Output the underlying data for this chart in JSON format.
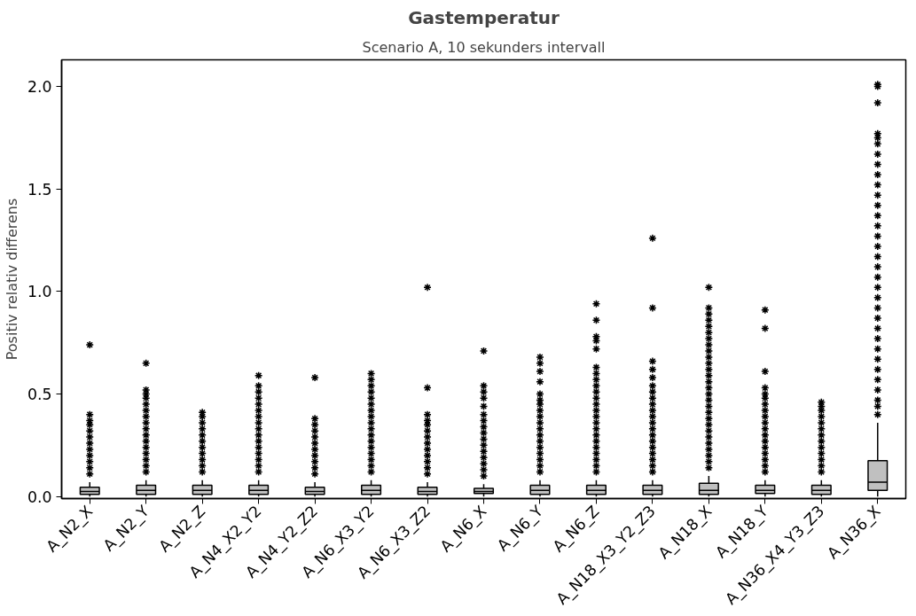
{
  "chart_data": {
    "type": "box",
    "title": "Gastemperatur",
    "subtitle": "Scenario A, 10 sekunders intervall",
    "ylabel": "Positiv relativ differens",
    "categories": [
      "A_N2_X",
      "A_N2_Y",
      "A_N2_Z",
      "A_N4_X2_Y2",
      "A_N4_Y2_Z2",
      "A_N6_X3_Y2",
      "A_N6_X3_Z2",
      "A_N6_X",
      "A_N6_Y",
      "A_N6_Z",
      "A_N18_X3_Y2_Z3",
      "A_N18_X",
      "A_N18_Y",
      "A_N36_X4_Y3_Z3",
      "A_N36_X"
    ],
    "color": "#c0c0c0",
    "marker": "star",
    "grid": false,
    "ylim": [
      -0.01,
      2.13
    ],
    "yticks": [
      {
        "value": 0,
        "label": "0.0"
      },
      {
        "value": 0.5,
        "label": "0.5"
      },
      {
        "value": 1,
        "label": "1.0"
      },
      {
        "value": 1.5,
        "label": "1.5"
      },
      {
        "value": 2,
        "label": "2.0"
      }
    ],
    "boxes": [
      {
        "low": 0,
        "q1": 0.01,
        "median": 0.025,
        "q3": 0.045,
        "high": 0.07,
        "outliers": [
          0.11,
          0.14,
          0.17,
          0.2,
          0.23,
          0.26,
          0.29,
          0.32,
          0.35,
          0.37,
          0.4,
          0.74
        ]
      },
      {
        "low": 0,
        "q1": 0.01,
        "median": 0.03,
        "q3": 0.055,
        "high": 0.08,
        "outliers": [
          0.12,
          0.15,
          0.18,
          0.21,
          0.24,
          0.27,
          0.3,
          0.33,
          0.36,
          0.39,
          0.42,
          0.45,
          0.48,
          0.5,
          0.52,
          0.65
        ]
      },
      {
        "low": 0,
        "q1": 0.01,
        "median": 0.03,
        "q3": 0.055,
        "high": 0.08,
        "outliers": [
          0.12,
          0.15,
          0.18,
          0.21,
          0.24,
          0.27,
          0.3,
          0.33,
          0.36,
          0.39,
          0.41
        ]
      },
      {
        "low": 0,
        "q1": 0.01,
        "median": 0.03,
        "q3": 0.055,
        "high": 0.08,
        "outliers": [
          0.12,
          0.15,
          0.18,
          0.21,
          0.24,
          0.27,
          0.3,
          0.33,
          0.36,
          0.39,
          0.42,
          0.45,
          0.48,
          0.51,
          0.54,
          0.59
        ]
      },
      {
        "low": 0,
        "q1": 0.01,
        "median": 0.025,
        "q3": 0.045,
        "high": 0.07,
        "outliers": [
          0.11,
          0.14,
          0.17,
          0.2,
          0.23,
          0.26,
          0.29,
          0.32,
          0.35,
          0.38,
          0.58
        ]
      },
      {
        "low": 0,
        "q1": 0.01,
        "median": 0.03,
        "q3": 0.055,
        "high": 0.08,
        "outliers": [
          0.12,
          0.15,
          0.18,
          0.21,
          0.24,
          0.27,
          0.3,
          0.33,
          0.36,
          0.39,
          0.42,
          0.45,
          0.48,
          0.51,
          0.54,
          0.57,
          0.6
        ]
      },
      {
        "low": 0,
        "q1": 0.01,
        "median": 0.025,
        "q3": 0.045,
        "high": 0.07,
        "outliers": [
          0.11,
          0.14,
          0.17,
          0.2,
          0.23,
          0.26,
          0.29,
          0.32,
          0.35,
          0.37,
          0.4,
          0.53,
          1.02
        ]
      },
      {
        "low": 0,
        "q1": 0.015,
        "median": 0.025,
        "q3": 0.04,
        "high": 0.06,
        "outliers": [
          0.1,
          0.13,
          0.16,
          0.19,
          0.22,
          0.25,
          0.28,
          0.31,
          0.34,
          0.37,
          0.4,
          0.44,
          0.48,
          0.51,
          0.54,
          0.71
        ]
      },
      {
        "low": 0,
        "q1": 0.01,
        "median": 0.03,
        "q3": 0.055,
        "high": 0.08,
        "outliers": [
          0.12,
          0.15,
          0.18,
          0.21,
          0.24,
          0.27,
          0.3,
          0.33,
          0.36,
          0.39,
          0.42,
          0.45,
          0.47,
          0.5,
          0.56,
          0.61,
          0.65,
          0.68
        ]
      },
      {
        "low": 0,
        "q1": 0.01,
        "median": 0.03,
        "q3": 0.055,
        "high": 0.08,
        "outliers": [
          0.12,
          0.15,
          0.18,
          0.21,
          0.24,
          0.27,
          0.3,
          0.33,
          0.36,
          0.39,
          0.42,
          0.45,
          0.48,
          0.51,
          0.54,
          0.57,
          0.6,
          0.63,
          0.72,
          0.76,
          0.78,
          0.86,
          0.94
        ]
      },
      {
        "low": 0,
        "q1": 0.01,
        "median": 0.03,
        "q3": 0.055,
        "high": 0.08,
        "outliers": [
          0.12,
          0.15,
          0.18,
          0.21,
          0.24,
          0.27,
          0.3,
          0.33,
          0.36,
          0.39,
          0.42,
          0.45,
          0.48,
          0.51,
          0.54,
          0.58,
          0.62,
          0.66,
          0.92,
          1.26
        ]
      },
      {
        "low": 0,
        "q1": 0.01,
        "median": 0.03,
        "q3": 0.065,
        "high": 0.1,
        "outliers": [
          0.14,
          0.17,
          0.2,
          0.23,
          0.26,
          0.29,
          0.32,
          0.35,
          0.38,
          0.41,
          0.44,
          0.47,
          0.5,
          0.53,
          0.56,
          0.59,
          0.62,
          0.65,
          0.68,
          0.71,
          0.74,
          0.77,
          0.8,
          0.83,
          0.86,
          0.89,
          0.92,
          1.02
        ]
      },
      {
        "low": 0,
        "q1": 0.015,
        "median": 0.03,
        "q3": 0.055,
        "high": 0.08,
        "outliers": [
          0.12,
          0.15,
          0.18,
          0.21,
          0.24,
          0.27,
          0.3,
          0.33,
          0.36,
          0.39,
          0.42,
          0.45,
          0.48,
          0.5,
          0.53,
          0.61,
          0.82,
          0.91
        ]
      },
      {
        "low": 0,
        "q1": 0.01,
        "median": 0.03,
        "q3": 0.055,
        "high": 0.08,
        "outliers": [
          0.12,
          0.15,
          0.18,
          0.21,
          0.24,
          0.27,
          0.3,
          0.33,
          0.36,
          0.39,
          0.42,
          0.44,
          0.46
        ]
      },
      {
        "low": 0,
        "q1": 0.03,
        "median": 0.07,
        "q3": 0.175,
        "high": 0.36,
        "outliers": [
          0.4,
          0.44,
          0.47,
          0.52,
          0.57,
          0.62,
          0.67,
          0.72,
          0.77,
          0.82,
          0.87,
          0.92,
          0.97,
          1.02,
          1.07,
          1.12,
          1.17,
          1.22,
          1.27,
          1.32,
          1.37,
          1.42,
          1.47,
          1.52,
          1.57,
          1.62,
          1.67,
          1.72,
          1.75,
          1.77,
          1.92,
          2.0,
          2.01
        ]
      }
    ]
  }
}
